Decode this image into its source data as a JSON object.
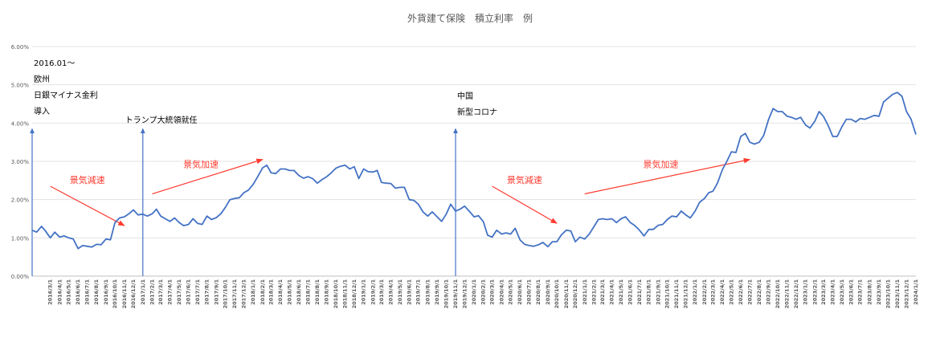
{
  "chart_data": {
    "type": "line",
    "title": "外貨建て保険　積立利率　例",
    "xlabel": "",
    "ylabel": "",
    "ylim": [
      0,
      0.06
    ],
    "y_ticks": [
      0,
      0.01,
      0.02,
      0.03,
      0.04,
      0.05,
      0.06
    ],
    "y_tick_labels": [
      "0.00%",
      "1.00%",
      "2.00%",
      "3.00%",
      "4.00%",
      "5.00%",
      "6.00%"
    ],
    "grid": "horizontal",
    "x_tick_labels": [
      "2016/3/1",
      "2016/4/1",
      "2016/5/1",
      "2016/6/1",
      "2016/7/1",
      "2016/8/1",
      "2016/9/1",
      "2016/10/1",
      "2016/11/1",
      "2016/12/1",
      "2017/1/1",
      "2017/2/1",
      "2017/3/1",
      "2017/4/1",
      "2017/5/1",
      "2017/6/1",
      "2017/7/1",
      "2017/8/1",
      "2017/9/1",
      "2017/10/1",
      "2017/11/1",
      "2017/12/1",
      "2018/1/1",
      "2018/2/1",
      "2018/3/1",
      "2018/4/1",
      "2018/5/1",
      "2018/6/1",
      "2018/7/1",
      "2018/8/1",
      "2018/9/1",
      "2018/10/1",
      "2018/11/1",
      "2018/12/1",
      "2019/1/1",
      "2019/2/1",
      "2019/3/1",
      "2019/4/1",
      "2019/5/1",
      "2019/6/1",
      "2019/7/1",
      "2019/8/1",
      "2019/9/1",
      "2019/10/1",
      "2019/11/1",
      "2019/12/1",
      "2020/1/1",
      "2020/2/1",
      "2020/3/1",
      "2020/4/1",
      "2020/5/1",
      "2020/6/1",
      "2020/7/1",
      "2020/8/1",
      "2020/9/1",
      "2020/10/1",
      "2020/11/1",
      "2020/12/1",
      "2021/1/1",
      "2021/2/1",
      "2021/3/1",
      "2021/4/1",
      "2021/5/1",
      "2021/6/1",
      "2021/7/1",
      "2021/8/1",
      "2021/9/1",
      "2021/10/1",
      "2021/11/1",
      "2021/12/1",
      "2022/1/1",
      "2022/2/1",
      "2022/3/1",
      "2022/4/1",
      "2022/5/1",
      "2022/6/1",
      "2022/7/1",
      "2022/8/1",
      "2022/9/1",
      "2022/10/1",
      "2022/11/1",
      "2022/12/1",
      "2023/1/1",
      "2023/2/1",
      "2023/3/1",
      "2023/4/1",
      "2023/5/1",
      "2023/6/1",
      "2023/7/1",
      "2023/8/1",
      "2023/9/1",
      "2023/10/1",
      "2023/11/1",
      "2023/12/1",
      "2024/1/1"
    ],
    "x_range": [
      "2016/1/1",
      "2024/1/1"
    ],
    "series": [
      {
        "name": "",
        "color": "#4472C4",
        "points": [
          [
            "2016/1/1",
            0.012
          ],
          [
            "2016/1/16",
            0.0115
          ],
          [
            "2016/2/1",
            0.013
          ],
          [
            "2016/2/15",
            0.0117
          ],
          [
            "2016/3/1",
            0.01
          ],
          [
            "2016/3/16",
            0.0115
          ],
          [
            "2016/4/1",
            0.0102
          ],
          [
            "2016/4/16",
            0.0105
          ],
          [
            "2016/5/1",
            0.01
          ],
          [
            "2016/5/16",
            0.0097
          ],
          [
            "2016/6/1",
            0.0072
          ],
          [
            "2016/6/16",
            0.008
          ],
          [
            "2016/7/1",
            0.0078
          ],
          [
            "2016/7/16",
            0.0076
          ],
          [
            "2016/8/1",
            0.0083
          ],
          [
            "2016/8/16",
            0.0082
          ],
          [
            "2016/9/1",
            0.0097
          ],
          [
            "2016/9/16",
            0.0095
          ],
          [
            "2016/10/1",
            0.014
          ],
          [
            "2016/10/16",
            0.0152
          ],
          [
            "2016/11/1",
            0.0155
          ],
          [
            "2016/11/16",
            0.0163
          ],
          [
            "2016/12/1",
            0.0173
          ],
          [
            "2016/12/16",
            0.016
          ],
          [
            "2017/1/1",
            0.0162
          ],
          [
            "2017/1/16",
            0.0157
          ],
          [
            "2017/2/1",
            0.0163
          ],
          [
            "2017/2/15",
            0.0175
          ],
          [
            "2017/3/1",
            0.0157
          ],
          [
            "2017/3/16",
            0.015
          ],
          [
            "2017/4/1",
            0.0143
          ],
          [
            "2017/4/16",
            0.0152
          ],
          [
            "2017/5/1",
            0.014
          ],
          [
            "2017/5/16",
            0.0132
          ],
          [
            "2017/6/1",
            0.0135
          ],
          [
            "2017/6/16",
            0.015
          ],
          [
            "2017/7/1",
            0.0138
          ],
          [
            "2017/7/16",
            0.0135
          ],
          [
            "2017/8/1",
            0.0157
          ],
          [
            "2017/8/16",
            0.0148
          ],
          [
            "2017/9/1",
            0.0153
          ],
          [
            "2017/9/16",
            0.0163
          ],
          [
            "2017/10/1",
            0.018
          ],
          [
            "2017/10/16",
            0.02
          ],
          [
            "2017/11/1",
            0.0203
          ],
          [
            "2017/11/16",
            0.0205
          ],
          [
            "2017/12/1",
            0.0218
          ],
          [
            "2017/12/16",
            0.0225
          ],
          [
            "2018/1/1",
            0.024
          ],
          [
            "2018/1/16",
            0.026
          ],
          [
            "2018/2/1",
            0.0283
          ],
          [
            "2018/2/15",
            0.029
          ],
          [
            "2018/3/1",
            0.027
          ],
          [
            "2018/3/16",
            0.0268
          ],
          [
            "2018/4/1",
            0.028
          ],
          [
            "2018/4/16",
            0.028
          ],
          [
            "2018/5/1",
            0.0276
          ],
          [
            "2018/5/16",
            0.0276
          ],
          [
            "2018/6/1",
            0.0263
          ],
          [
            "2018/6/16",
            0.0256
          ],
          [
            "2018/7/1",
            0.026
          ],
          [
            "2018/7/16",
            0.0255
          ],
          [
            "2018/8/1",
            0.0243
          ],
          [
            "2018/8/16",
            0.0252
          ],
          [
            "2018/9/1",
            0.026
          ],
          [
            "2018/9/16",
            0.027
          ],
          [
            "2018/10/1",
            0.0282
          ],
          [
            "2018/10/16",
            0.0287
          ],
          [
            "2018/11/1",
            0.029
          ],
          [
            "2018/11/16",
            0.028
          ],
          [
            "2018/12/1",
            0.0286
          ],
          [
            "2018/12/16",
            0.0255
          ],
          [
            "2019/1/1",
            0.028
          ],
          [
            "2019/1/16",
            0.0273
          ],
          [
            "2019/2/1",
            0.0272
          ],
          [
            "2019/2/15",
            0.0276
          ],
          [
            "2019/3/1",
            0.0245
          ],
          [
            "2019/3/16",
            0.0243
          ],
          [
            "2019/4/1",
            0.0242
          ],
          [
            "2019/4/16",
            0.023
          ],
          [
            "2019/5/1",
            0.0232
          ],
          [
            "2019/5/16",
            0.0232
          ],
          [
            "2019/6/1",
            0.02
          ],
          [
            "2019/6/16",
            0.0198
          ],
          [
            "2019/7/1",
            0.0188
          ],
          [
            "2019/7/16",
            0.0168
          ],
          [
            "2019/8/1",
            0.0157
          ],
          [
            "2019/8/16",
            0.0168
          ],
          [
            "2019/9/1",
            0.0155
          ],
          [
            "2019/9/16",
            0.0143
          ],
          [
            "2019/10/1",
            0.0162
          ],
          [
            "2019/10/16",
            0.0188
          ],
          [
            "2019/11/1",
            0.017
          ],
          [
            "2019/11/16",
            0.0175
          ],
          [
            "2019/12/1",
            0.0183
          ],
          [
            "2019/12/16",
            0.017
          ],
          [
            "2020/1/1",
            0.0155
          ],
          [
            "2020/1/16",
            0.0158
          ],
          [
            "2020/2/1",
            0.0142
          ],
          [
            "2020/2/15",
            0.0107
          ],
          [
            "2020/3/1",
            0.0102
          ],
          [
            "2020/3/16",
            0.012
          ],
          [
            "2020/4/1",
            0.011
          ],
          [
            "2020/4/16",
            0.0113
          ],
          [
            "2020/5/1",
            0.011
          ],
          [
            "2020/5/16",
            0.0125
          ],
          [
            "2020/6/1",
            0.0095
          ],
          [
            "2020/6/16",
            0.0083
          ],
          [
            "2020/7/1",
            0.008
          ],
          [
            "2020/7/16",
            0.0078
          ],
          [
            "2020/8/1",
            0.0082
          ],
          [
            "2020/8/16",
            0.0088
          ],
          [
            "2020/9/1",
            0.0077
          ],
          [
            "2020/9/16",
            0.009
          ],
          [
            "2020/10/1",
            0.009
          ],
          [
            "2020/10/16",
            0.0108
          ],
          [
            "2020/11/1",
            0.012
          ],
          [
            "2020/11/16",
            0.0118
          ],
          [
            "2020/12/1",
            0.009
          ],
          [
            "2020/12/16",
            0.0102
          ],
          [
            "2021/1/1",
            0.0097
          ],
          [
            "2021/1/16",
            0.011
          ],
          [
            "2021/2/1",
            0.013
          ],
          [
            "2021/2/15",
            0.0148
          ],
          [
            "2021/3/1",
            0.015
          ],
          [
            "2021/3/16",
            0.0148
          ],
          [
            "2021/4/1",
            0.015
          ],
          [
            "2021/4/16",
            0.014
          ],
          [
            "2021/5/1",
            0.015
          ],
          [
            "2021/5/16",
            0.0155
          ],
          [
            "2021/6/1",
            0.014
          ],
          [
            "2021/6/16",
            0.0132
          ],
          [
            "2021/7/1",
            0.012
          ],
          [
            "2021/7/16",
            0.0105
          ],
          [
            "2021/8/1",
            0.0122
          ],
          [
            "2021/8/16",
            0.0122
          ],
          [
            "2021/9/1",
            0.0133
          ],
          [
            "2021/9/16",
            0.0135
          ],
          [
            "2021/10/1",
            0.0148
          ],
          [
            "2021/10/16",
            0.0157
          ],
          [
            "2021/11/1",
            0.0155
          ],
          [
            "2021/11/16",
            0.017
          ],
          [
            "2021/12/1",
            0.016
          ],
          [
            "2021/12/16",
            0.0152
          ],
          [
            "2022/1/1",
            0.017
          ],
          [
            "2022/1/16",
            0.0193
          ],
          [
            "2022/2/1",
            0.0203
          ],
          [
            "2022/2/15",
            0.0218
          ],
          [
            "2022/3/1",
            0.0222
          ],
          [
            "2022/3/16",
            0.0243
          ],
          [
            "2022/4/1",
            0.0278
          ],
          [
            "2022/4/16",
            0.03
          ],
          [
            "2022/5/1",
            0.0325
          ],
          [
            "2022/5/16",
            0.0323
          ],
          [
            "2022/6/1",
            0.0365
          ],
          [
            "2022/6/16",
            0.0373
          ],
          [
            "2022/7/1",
            0.035
          ],
          [
            "2022/7/16",
            0.0345
          ],
          [
            "2022/8/1",
            0.035
          ],
          [
            "2022/8/16",
            0.0368
          ],
          [
            "2022/9/1",
            0.041
          ],
          [
            "2022/9/16",
            0.0438
          ],
          [
            "2022/10/1",
            0.043
          ],
          [
            "2022/10/16",
            0.043
          ],
          [
            "2022/11/1",
            0.0418
          ],
          [
            "2022/11/16",
            0.0415
          ],
          [
            "2022/12/1",
            0.041
          ],
          [
            "2022/12/16",
            0.0415
          ],
          [
            "2023/1/1",
            0.0395
          ],
          [
            "2023/1/16",
            0.0387
          ],
          [
            "2023/2/1",
            0.0405
          ],
          [
            "2023/2/15",
            0.043
          ],
          [
            "2023/3/1",
            0.0418
          ],
          [
            "2023/3/16",
            0.0395
          ],
          [
            "2023/4/1",
            0.0365
          ],
          [
            "2023/4/16",
            0.0365
          ],
          [
            "2023/5/1",
            0.039
          ],
          [
            "2023/5/16",
            0.041
          ],
          [
            "2023/6/1",
            0.041
          ],
          [
            "2023/6/16",
            0.0403
          ],
          [
            "2023/7/1",
            0.0412
          ],
          [
            "2023/7/16",
            0.041
          ],
          [
            "2023/8/1",
            0.0415
          ],
          [
            "2023/8/16",
            0.042
          ],
          [
            "2023/9/1",
            0.0418
          ],
          [
            "2023/9/16",
            0.0455
          ],
          [
            "2023/10/1",
            0.0465
          ],
          [
            "2023/10/16",
            0.0475
          ],
          [
            "2023/11/1",
            0.048
          ],
          [
            "2023/11/16",
            0.047
          ],
          [
            "2023/12/1",
            0.043
          ],
          [
            "2023/12/16",
            0.041
          ],
          [
            "2024/1/1",
            0.037
          ]
        ]
      }
    ],
    "annotations": {
      "events": [
        {
          "date": "2016/1/1",
          "lines": [
            "2016.01～",
            "欧州",
            "日銀マイナス金利",
            "導入"
          ]
        },
        {
          "date": "2017/1/1",
          "lines": [
            "トランプ大統領就任"
          ]
        },
        {
          "date": "2019/11/1",
          "lines": [
            "中国",
            "新型コロナ"
          ]
        }
      ],
      "trends": [
        {
          "label": "景気減速",
          "from": [
            "2016/3/1",
            0.0235
          ],
          "to": [
            "2016/11/1",
            0.0132
          ]
        },
        {
          "label": "景気加速",
          "from": [
            "2017/2/1",
            0.0215
          ],
          "to": [
            "2018/2/1",
            0.0305
          ]
        },
        {
          "label": "景気減速",
          "from": [
            "2020/3/1",
            0.0235
          ],
          "to": [
            "2020/10/1",
            0.0138
          ]
        },
        {
          "label": "景気加速",
          "from": [
            "2021/1/1",
            0.0215
          ],
          "to": [
            "2022/7/1",
            0.0305
          ]
        }
      ]
    }
  }
}
